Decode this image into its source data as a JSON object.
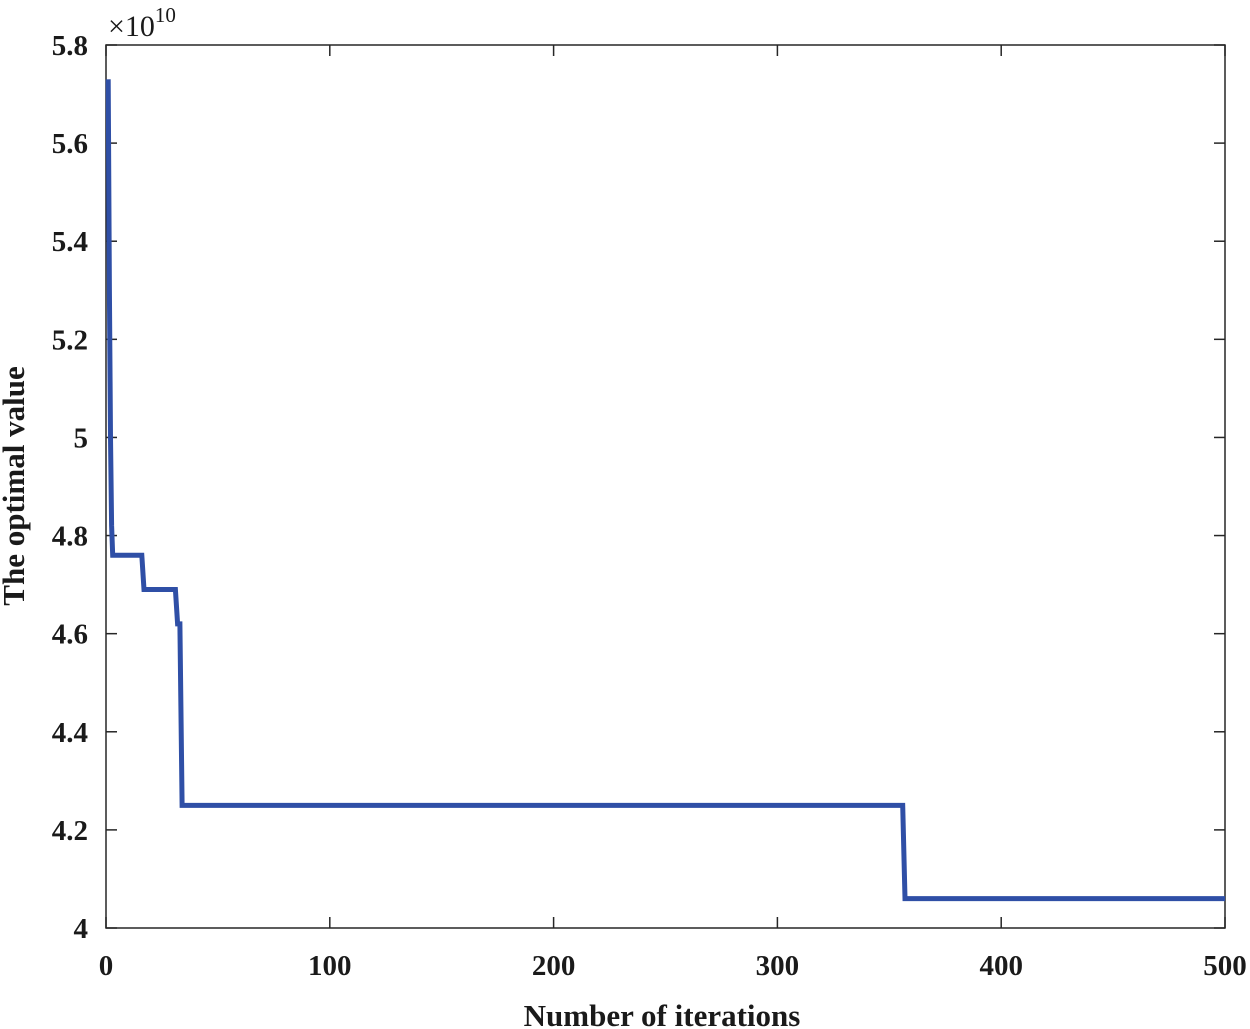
{
  "chart_data": {
    "type": "line",
    "title": "",
    "xlabel": "Number of iterations",
    "ylabel": "The optimal value",
    "y_multiplier": {
      "base": "×10",
      "exponent": "10"
    },
    "xlim": [
      0,
      500
    ],
    "ylim": [
      4.0,
      5.8
    ],
    "x_ticks": [
      0,
      100,
      200,
      300,
      400,
      500
    ],
    "y_ticks": [
      4,
      4.2,
      4.4,
      4.6,
      4.8,
      5,
      5.2,
      5.4,
      5.6,
      5.8
    ],
    "y_tick_labels": [
      "4",
      "4.2",
      "4.4",
      "4.6",
      "4.8",
      "5",
      "5.2",
      "5.4",
      "5.6",
      "5.8"
    ],
    "grid": false,
    "series": [
      {
        "color": "#2f4fa6",
        "x": [
          1,
          1.5,
          2,
          2.5,
          3,
          4,
          16,
          17,
          31,
          32,
          33,
          34,
          356,
          357,
          500
        ],
        "y": [
          5.73,
          5.3,
          5.0,
          4.82,
          4.76,
          4.76,
          4.76,
          4.69,
          4.69,
          4.62,
          4.62,
          4.25,
          4.25,
          4.06,
          4.06
        ]
      }
    ]
  }
}
